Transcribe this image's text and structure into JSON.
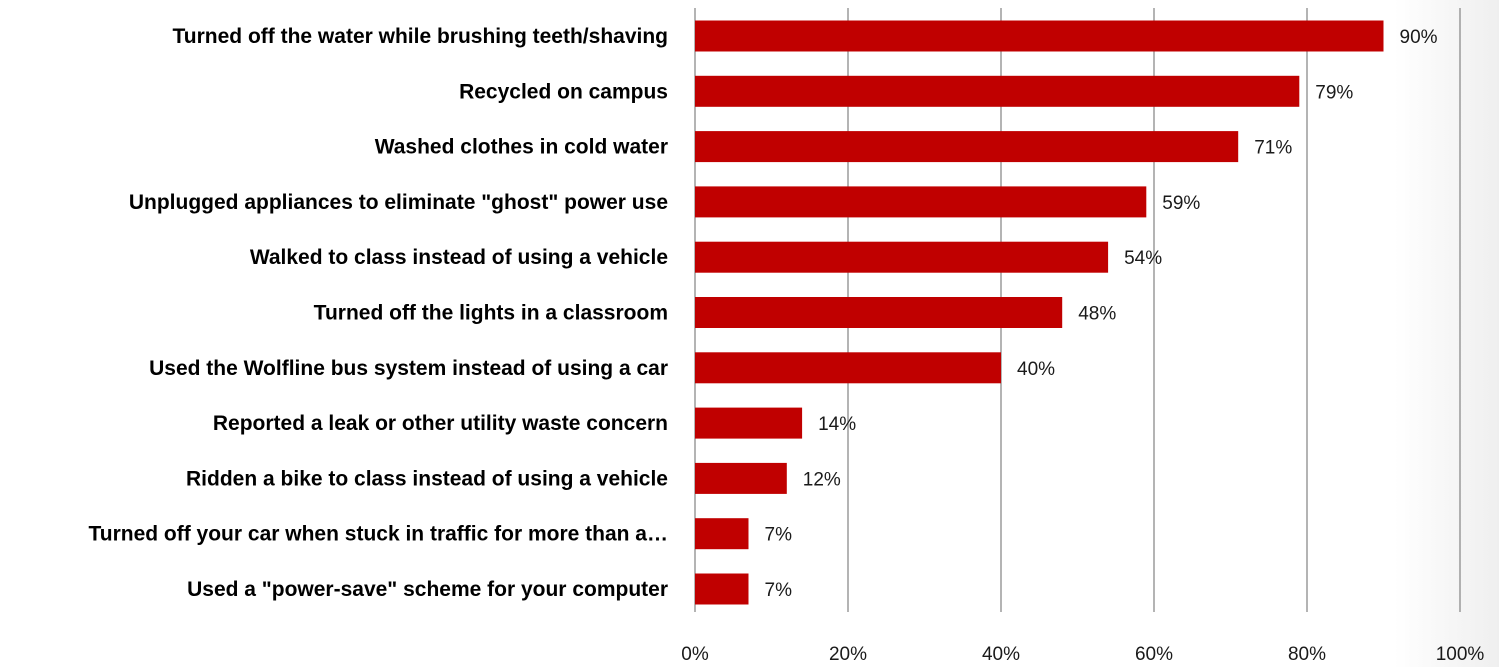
{
  "chart_data": {
    "type": "bar",
    "orientation": "horizontal",
    "title": "",
    "xlabel": "",
    "ylabel": "",
    "categories": [
      "Turned off the water while brushing teeth/shaving",
      "Recycled on campus",
      "Washed clothes in cold water",
      "Unplugged appliances to eliminate \"ghost\" power use",
      "Walked to class instead of using a vehicle",
      "Turned off the lights in a classroom",
      "Used the Wolfline bus system instead of using a car",
      "Reported a leak or other utility waste concern",
      "Ridden a bike to class instead of using a vehicle",
      "Turned off your car when stuck in traffic for more than a…",
      "Used a \"power-save\" scheme for your computer"
    ],
    "values": [
      90,
      79,
      71,
      59,
      54,
      48,
      40,
      14,
      12,
      7,
      7
    ],
    "value_labels": [
      "90%",
      "79%",
      "71%",
      "59%",
      "54%",
      "48%",
      "40%",
      "14%",
      "12%",
      "7%",
      "7%"
    ],
    "xlim": [
      0,
      100
    ],
    "x_ticks": [
      "0%",
      "20%",
      "40%",
      "60%",
      "80%",
      "100%"
    ],
    "grid": true,
    "legend": "none",
    "bar_color": "#c00000"
  }
}
